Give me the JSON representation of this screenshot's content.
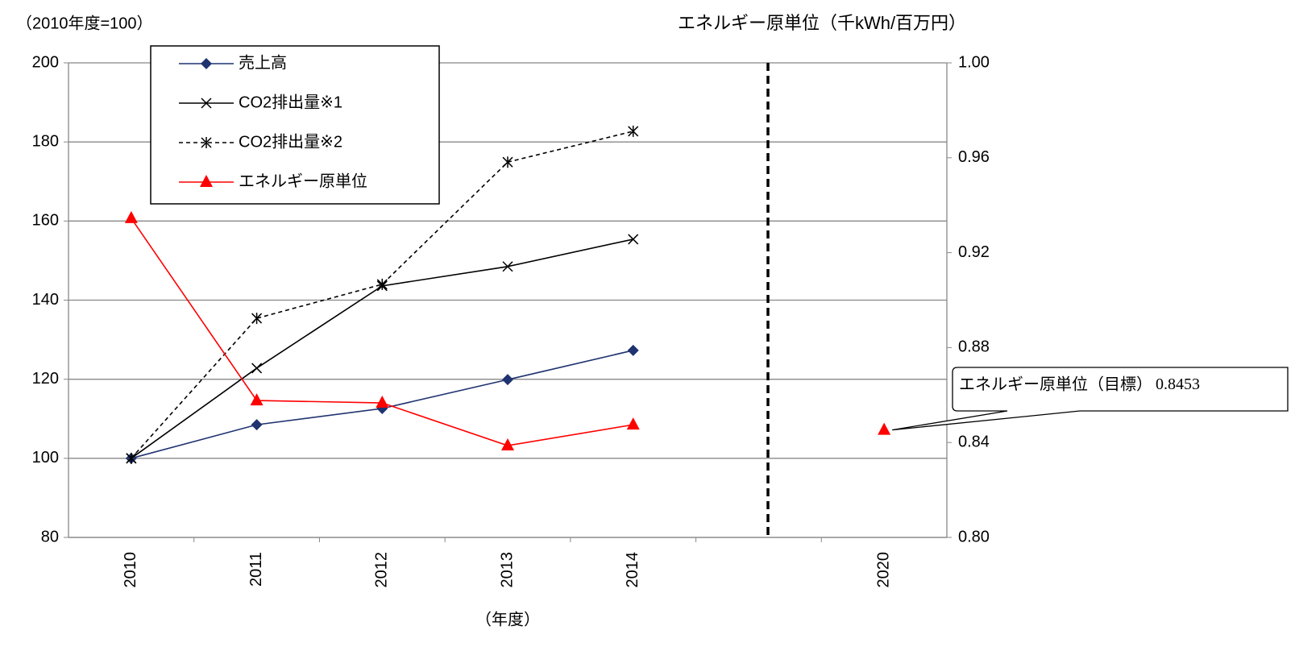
{
  "chart_data": {
    "type": "line",
    "y_label": "（2010年度=100）",
    "y2_label": "エネルギー原単位（千kWh/百万円）",
    "x_label": "（年度）",
    "categories": [
      "2010",
      "2011",
      "2012",
      "2013",
      "2014",
      null,
      "2020"
    ],
    "ylim": [
      80,
      200
    ],
    "yticks": [
      80,
      100,
      120,
      140,
      160,
      180,
      200
    ],
    "y2lim": [
      0.8,
      1.0
    ],
    "y2ticks": [
      {
        "value": 0.8,
        "label": "0.80"
      },
      0.84,
      0.88,
      0.92,
      0.96,
      {
        "value": 1.0,
        "label": "1.00"
      }
    ],
    "grid": true,
    "legend": "top-left",
    "series": [
      {
        "name": "売上高",
        "color": "#1f3370",
        "marker": "diamond",
        "dashed": false,
        "values": [
          100,
          108.5,
          112.6,
          119.9,
          127.3,
          null,
          null
        ]
      },
      {
        "name": "CO2排出量※1",
        "color": "#000000",
        "marker": "x",
        "dashed": false,
        "values": [
          100,
          122.8,
          143.6,
          148.5,
          155.4,
          null,
          null
        ]
      },
      {
        "name": "CO2排出量※2",
        "color": "#000000",
        "marker": "asterisk",
        "dashed": true,
        "values": [
          100,
          135.4,
          144.0,
          174.9,
          182.7,
          null,
          null
        ]
      },
      {
        "name": "エネルギー原単位",
        "color": "#ff0000",
        "marker": "triangle",
        "dashed": false,
        "axis": "y2",
        "values": [
          0.9345,
          0.8577,
          0.8567,
          0.8387,
          0.8475,
          null,
          0.8453
        ],
        "value_labels": [
          null,
          null,
          null,
          null,
          null,
          null,
          "0.8453"
        ]
      }
    ],
    "annotation": "エネルギー原単位（目標）"
  }
}
